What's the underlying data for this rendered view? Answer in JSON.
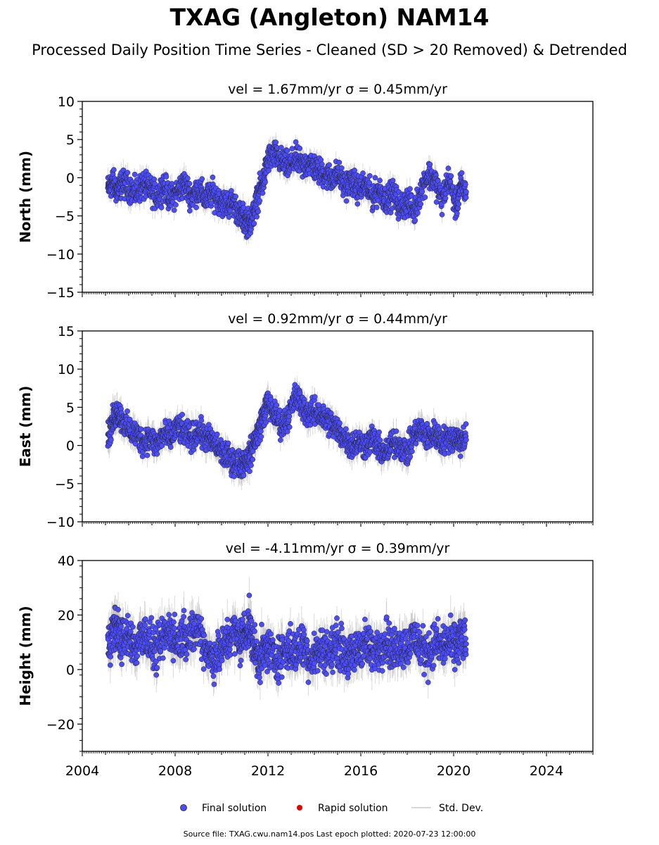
{
  "title": "TXAG (Angleton) NAM14",
  "subtitle": "Processed Daily Position Time Series - Cleaned (SD > 20 Removed) & Detrended",
  "legend": {
    "items": [
      {
        "label": "Final solution",
        "color": "#4c4cff",
        "marker": "circle"
      },
      {
        "label": "Rapid solution",
        "color": "#e00000",
        "marker": "circle"
      },
      {
        "label": "Std. Dev.",
        "color": "#cccccc",
        "marker": "line"
      }
    ]
  },
  "footer": "Source file: TXAG.cwu.nam14.pos  Last epoch plotted: 2020-07-23 12:00:00",
  "colors": {
    "final": "#4c4cff",
    "rapid": "#e00000",
    "stddev": "#bbbbbb",
    "marker_edge": "#222222"
  },
  "chart_data": [
    {
      "type": "scatter",
      "title_prefix": "vel = 1.67mm/yr",
      "title_sigma": "σ = 0.45mm/yr",
      "ylabel": "North (mm)",
      "xlim": [
        2004,
        2026
      ],
      "ylim": [
        -15,
        10
      ],
      "yticks": [
        -15,
        -10,
        -5,
        0,
        5,
        10
      ],
      "ytick_labels": [
        "−15",
        "−10",
        "−5",
        "0",
        "5",
        "10"
      ],
      "x_tick_labels_shown": false,
      "series": [
        {
          "x": [
            2005.1,
            2005.3,
            2005.5,
            2005.7,
            2006.0,
            2006.3,
            2006.6,
            2006.9,
            2007.2,
            2007.5,
            2007.8,
            2008.1,
            2008.4,
            2008.7,
            2009.0,
            2009.3,
            2009.6,
            2009.9,
            2010.2,
            2010.5,
            2010.8,
            2011.0,
            2011.2,
            2011.4,
            2011.6,
            2011.8,
            2012.0,
            2012.3,
            2012.6,
            2012.9,
            2013.2,
            2013.5,
            2013.8,
            2014.1,
            2014.4,
            2014.7,
            2015.0,
            2015.3,
            2015.6,
            2015.9,
            2016.2,
            2016.5,
            2016.8,
            2017.1,
            2017.4,
            2017.7,
            2018.0,
            2018.3,
            2018.6,
            2018.9,
            2019.2,
            2019.5,
            2019.8,
            2020.1,
            2020.3,
            2020.55
          ],
          "y": [
            -1.5,
            -0.5,
            -1.8,
            -0.8,
            -1.2,
            -2.0,
            -1.0,
            -1.5,
            -2.5,
            -1.0,
            -2.8,
            -1.8,
            -0.8,
            -2.5,
            -1.5,
            -2.8,
            -2.0,
            -3.0,
            -3.5,
            -3.2,
            -5.0,
            -5.5,
            -6.0,
            -4.5,
            -2.0,
            -0.5,
            2.5,
            3.0,
            2.0,
            1.5,
            2.5,
            1.5,
            2.0,
            1.0,
            0.5,
            0.0,
            0.5,
            -1.0,
            -0.5,
            -1.5,
            -1.0,
            -2.5,
            -1.5,
            -3.0,
            -2.0,
            -4.0,
            -3.0,
            -4.5,
            -1.5,
            0.5,
            -0.5,
            -3.0,
            0.0,
            -4.0,
            -1.0,
            -2.0
          ],
          "y_err": [
            1.0,
            1.0,
            1.0,
            1.0,
            1.0,
            1.0,
            1.0,
            1.0,
            1.0,
            1.0,
            1.0,
            1.0,
            1.0,
            1.0,
            1.0,
            1.0,
            1.0,
            1.0,
            1.0,
            1.0,
            1.0,
            1.0,
            1.0,
            1.0,
            1.0,
            1.0,
            1.0,
            1.0,
            1.0,
            1.0,
            1.0,
            1.0,
            1.0,
            1.0,
            1.0,
            1.0,
            1.0,
            1.0,
            1.0,
            1.0,
            1.0,
            1.0,
            1.0,
            1.0,
            1.0,
            1.0,
            1.0,
            1.0,
            1.0,
            1.0,
            1.0,
            1.0,
            1.0,
            1.0,
            1.0,
            1.0
          ],
          "scatter_amp": 2.0
        }
      ]
    },
    {
      "type": "scatter",
      "title_prefix": "vel = 0.92mm/yr",
      "title_sigma": "σ = 0.44mm/yr",
      "ylabel": "East (mm)",
      "xlim": [
        2004,
        2026
      ],
      "ylim": [
        -10,
        15
      ],
      "yticks": [
        -10,
        -5,
        0,
        5,
        10,
        15
      ],
      "ytick_labels": [
        "−10",
        "−5",
        "0",
        "5",
        "10",
        "15"
      ],
      "x_tick_labels_shown": false,
      "series": [
        {
          "x": [
            2005.1,
            2005.3,
            2005.5,
            2005.7,
            2006.0,
            2006.3,
            2006.6,
            2006.9,
            2007.2,
            2007.5,
            2007.8,
            2008.1,
            2008.4,
            2008.7,
            2009.0,
            2009.3,
            2009.6,
            2009.9,
            2010.2,
            2010.5,
            2010.8,
            2011.0,
            2011.2,
            2011.4,
            2011.6,
            2011.8,
            2012.0,
            2012.3,
            2012.6,
            2012.9,
            2013.2,
            2013.5,
            2013.8,
            2014.1,
            2014.4,
            2014.7,
            2015.0,
            2015.3,
            2015.6,
            2015.9,
            2016.2,
            2016.5,
            2016.8,
            2017.1,
            2017.4,
            2017.7,
            2018.0,
            2018.3,
            2018.6,
            2018.9,
            2019.2,
            2019.5,
            2019.8,
            2020.1,
            2020.3,
            2020.55
          ],
          "y": [
            1.0,
            3.0,
            4.5,
            3.5,
            2.0,
            1.5,
            0.5,
            1.0,
            0.0,
            1.5,
            1.0,
            2.5,
            1.5,
            1.0,
            2.0,
            1.0,
            0.5,
            -0.5,
            -1.5,
            -2.0,
            -2.5,
            -2.0,
            -1.5,
            0.5,
            2.0,
            4.0,
            5.5,
            4.0,
            2.5,
            4.0,
            6.5,
            5.0,
            4.0,
            4.5,
            3.5,
            3.0,
            2.0,
            1.0,
            0.0,
            0.5,
            0.0,
            1.0,
            -0.5,
            -1.0,
            0.5,
            0.0,
            -1.0,
            1.5,
            2.0,
            1.0,
            1.5,
            0.5,
            1.0,
            1.0,
            0.5,
            1.5
          ],
          "y_err": [
            1.2,
            1.2,
            1.2,
            1.2,
            1.2,
            1.2,
            1.2,
            1.2,
            1.2,
            1.2,
            1.2,
            1.2,
            1.2,
            1.2,
            1.2,
            1.2,
            1.2,
            1.2,
            1.2,
            1.2,
            1.2,
            1.2,
            1.2,
            1.2,
            1.2,
            1.2,
            1.2,
            1.2,
            1.2,
            1.2,
            1.2,
            1.2,
            1.2,
            1.2,
            1.2,
            1.2,
            1.2,
            1.2,
            1.2,
            1.2,
            1.2,
            1.2,
            1.2,
            1.2,
            1.2,
            1.2,
            1.2,
            1.2,
            1.2,
            1.2,
            1.2,
            1.2,
            1.2,
            1.2,
            1.2,
            1.2
          ],
          "scatter_amp": 2.0
        }
      ]
    },
    {
      "type": "scatter",
      "title_prefix": "vel = -4.11mm/yr",
      "title_sigma": "σ = 0.39mm/yr",
      "ylabel": "Height (mm)",
      "xlim": [
        2004,
        2026
      ],
      "ylim": [
        -30,
        40
      ],
      "yticks": [
        -20,
        0,
        20,
        40
      ],
      "ytick_labels": [
        "−20",
        "0",
        "20",
        "40"
      ],
      "x_tick_labels_shown": true,
      "xticks": [
        2004,
        2008,
        2012,
        2016,
        2020,
        2024
      ],
      "xtick_labels": [
        "2004",
        "2008",
        "2012",
        "2016",
        "2020",
        "2024"
      ],
      "series": [
        {
          "x": [
            2005.1,
            2005.3,
            2005.5,
            2005.7,
            2006.0,
            2006.3,
            2006.6,
            2006.9,
            2007.2,
            2007.5,
            2007.8,
            2008.1,
            2008.4,
            2008.7,
            2009.0,
            2009.3,
            2009.6,
            2009.9,
            2010.2,
            2010.5,
            2010.8,
            2011.0,
            2011.2,
            2011.4,
            2011.6,
            2011.8,
            2012.0,
            2012.3,
            2012.6,
            2012.9,
            2013.2,
            2013.5,
            2013.8,
            2014.1,
            2014.4,
            2014.7,
            2015.0,
            2015.3,
            2015.6,
            2015.9,
            2016.2,
            2016.5,
            2016.8,
            2017.1,
            2017.4,
            2017.7,
            2018.0,
            2018.3,
            2018.6,
            2018.9,
            2019.2,
            2019.5,
            2019.8,
            2020.1,
            2020.3,
            2020.55
          ],
          "y": [
            8,
            14,
            16,
            10,
            12,
            8,
            14,
            10,
            6,
            12,
            14,
            10,
            14,
            12,
            16,
            8,
            4,
            6,
            10,
            14,
            10,
            14,
            16,
            8,
            4,
            6,
            8,
            4,
            6,
            8,
            6,
            10,
            4,
            6,
            8,
            6,
            10,
            6,
            4,
            8,
            10,
            6,
            8,
            12,
            6,
            10,
            8,
            12,
            8,
            6,
            10,
            8,
            10,
            8,
            12,
            10
          ],
          "y_err": [
            5,
            5,
            5,
            5,
            5,
            5,
            5,
            5,
            5,
            5,
            5,
            5,
            5,
            5,
            5,
            5,
            5,
            5,
            5,
            5,
            5,
            5,
            5,
            5,
            5,
            5,
            5,
            5,
            5,
            5,
            5,
            5,
            5,
            5,
            5,
            5,
            5,
            5,
            5,
            5,
            5,
            5,
            5,
            5,
            5,
            5,
            5,
            5,
            5,
            5,
            5,
            5,
            5,
            5,
            5,
            5
          ],
          "scatter_amp": 9.0
        }
      ]
    }
  ]
}
